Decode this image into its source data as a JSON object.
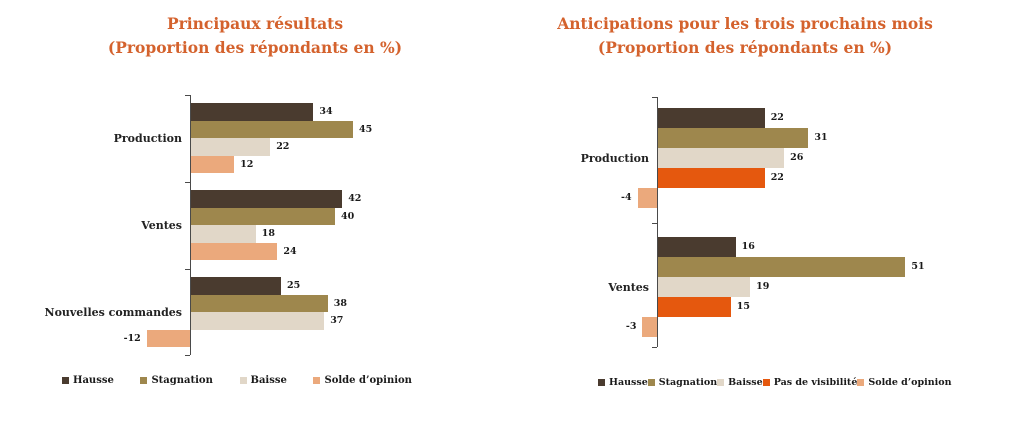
{
  "colors": {
    "title": "#D4622D",
    "axis": "#4A4A4A",
    "text": "#222222",
    "background": "#FFFFFF"
  },
  "chart_data": [
    {
      "type": "bar",
      "orientation": "horizontal",
      "title": "Principaux résultats",
      "subtitle": "(Proportion des répondants en %)",
      "categories": [
        "Production",
        "Ventes",
        "Nouvelles commandes"
      ],
      "series": [
        {
          "name": "Hausse",
          "color": "#4A3B2F",
          "values": [
            34,
            42,
            25
          ]
        },
        {
          "name": "Stagnation",
          "color": "#9E874D",
          "values": [
            45,
            40,
            38
          ]
        },
        {
          "name": "Baisse",
          "color": "#E1D7C8",
          "values": [
            22,
            18,
            37
          ]
        },
        {
          "name": "Solde d’opinion",
          "color": "#EBA97C",
          "values": [
            12,
            24,
            -12
          ]
        }
      ],
      "value_axis": {
        "unit": "%",
        "range_hint": [
          -15,
          50
        ],
        "gridlines": false,
        "tick_labels": "none",
        "value_labels": "end-of-bar"
      },
      "legend_position": "bottom"
    },
    {
      "type": "bar",
      "orientation": "horizontal",
      "title": "Anticipations pour les trois prochains mois",
      "subtitle": "(Proportion des répondants en %)",
      "categories": [
        "Production",
        "Ventes"
      ],
      "series": [
        {
          "name": "Hausse",
          "color": "#4A3B2F",
          "values": [
            22,
            16
          ]
        },
        {
          "name": "Stagnation",
          "color": "#9E874D",
          "values": [
            31,
            51
          ]
        },
        {
          "name": "Baisse",
          "color": "#E1D7C8",
          "values": [
            26,
            19
          ]
        },
        {
          "name": "Pas de visibilité",
          "color": "#E5580E",
          "values": [
            22,
            15
          ]
        },
        {
          "name": "Solde d’opinion",
          "color": "#EBA97C",
          "values": [
            -4,
            -3
          ]
        }
      ],
      "value_axis": {
        "unit": "%",
        "range_hint": [
          -6,
          55
        ],
        "gridlines": false,
        "tick_labels": "none",
        "value_labels": "end-of-bar"
      },
      "legend_position": "bottom"
    }
  ]
}
